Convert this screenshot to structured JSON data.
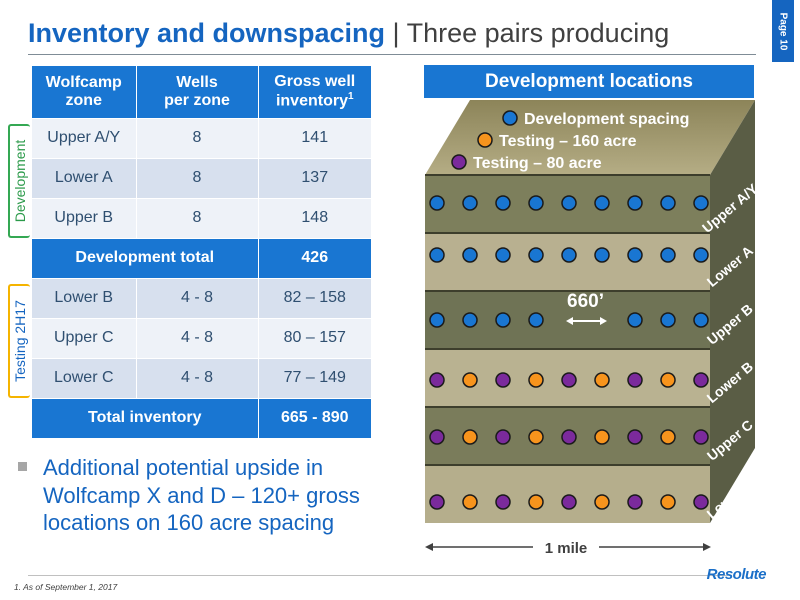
{
  "header": {
    "title_bold": "Inventory and downspacing",
    "separator": " | ",
    "title_rest": "Three pairs producing",
    "page_label": "Page 10"
  },
  "table": {
    "headers": [
      {
        "line1": "Wolfcamp",
        "line2": "zone",
        "sup": ""
      },
      {
        "line1": "Wells",
        "line2": "per zone",
        "sup": ""
      },
      {
        "line1": "Gross well",
        "line2": "inventory",
        "sup": "1"
      }
    ],
    "rows": [
      {
        "zone": "Upper A/Y",
        "wells": "8",
        "inventory": "141"
      },
      {
        "zone": "Lower A",
        "wells": "8",
        "inventory": "137"
      },
      {
        "zone": "Upper B",
        "wells": "8",
        "inventory": "148"
      }
    ],
    "dev_total": {
      "label": "Development total",
      "value": "426"
    },
    "testing_rows": [
      {
        "zone": "Lower B",
        "wells": "4 - 8",
        "inventory": "82 – 158"
      },
      {
        "zone": "Upper C",
        "wells": "4 - 8",
        "inventory": "80 – 157"
      },
      {
        "zone": "Lower C",
        "wells": "4 - 8",
        "inventory": "77 – 149"
      }
    ],
    "total": {
      "label": "Total inventory",
      "value": "665 - 890"
    }
  },
  "brackets": {
    "development": "Development",
    "testing": "Testing 2H17"
  },
  "bullet": "Additional potential upside in Wolfcamp X and D –  120+ gross locations on 160 acre spacing",
  "diagram": {
    "title": "Development locations",
    "legend": [
      {
        "label": "Development spacing",
        "color": "#1976d2"
      },
      {
        "label": "Testing – 160 acre",
        "color": "#f7941d"
      },
      {
        "label": "Testing – 80 acre",
        "color": "#7b2a9c"
      }
    ],
    "zones": [
      "Upper A/Y",
      "Lower A",
      "Upper B",
      "Lower B",
      "Upper C",
      "Lower C"
    ],
    "spacing_label": "660’",
    "width_label": "1 mile",
    "colors": {
      "dev": "#1976d2",
      "t160": "#f7941d",
      "t80": "#7b2a9c"
    }
  },
  "footnote": "1.    As of September 1, 2017",
  "logo": "Resolute"
}
